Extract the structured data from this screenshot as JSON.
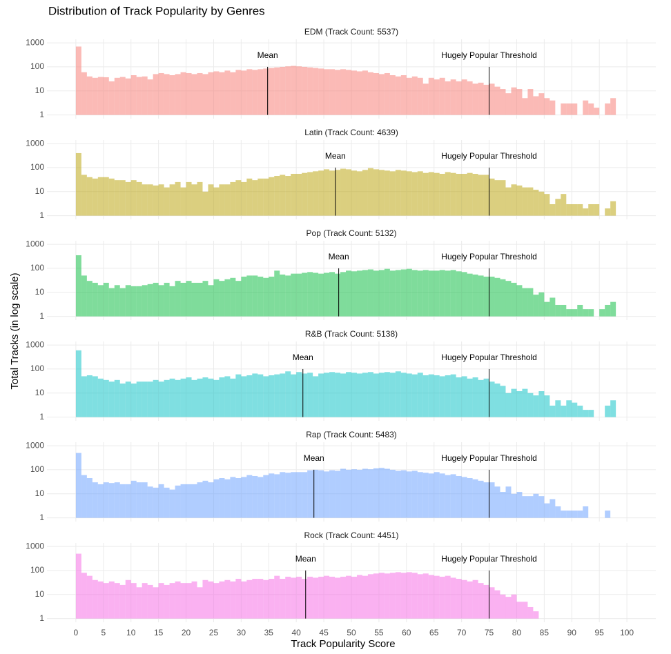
{
  "figure": {
    "title": "Distribution of Track Popularity by Genres",
    "x_label": "Track Popularity Score",
    "y_label": "Total Tracks (in log scale)"
  },
  "chart_data": [
    {
      "type": "histogram",
      "title": "EDM (Track Count: 5537)",
      "color": "#F8766D",
      "log_y": true,
      "grid": true,
      "xlim": [
        -5.25,
        105.25
      ],
      "xticks": [
        0,
        5,
        10,
        15,
        20,
        25,
        30,
        35,
        40,
        45,
        50,
        55,
        60,
        65,
        70,
        75,
        80,
        85,
        90,
        95,
        100
      ],
      "ylim": [
        0.7,
        1400
      ],
      "yticks": [
        1,
        10,
        100,
        1000
      ],
      "bins": [
        0,
        1,
        2,
        3,
        4,
        5,
        6,
        7,
        8,
        9,
        10,
        11,
        12,
        13,
        14,
        15,
        16,
        17,
        18,
        19,
        20,
        21,
        22,
        23,
        24,
        25,
        26,
        27,
        28,
        29,
        30,
        31,
        32,
        33,
        34,
        35,
        36,
        37,
        38,
        39,
        40,
        41,
        42,
        43,
        44,
        45,
        46,
        47,
        48,
        49,
        50,
        51,
        52,
        53,
        54,
        55,
        56,
        57,
        58,
        59,
        60,
        61,
        62,
        63,
        64,
        65,
        66,
        67,
        68,
        69,
        70,
        71,
        72,
        73,
        74,
        75,
        76,
        77,
        78,
        79,
        80,
        81,
        82,
        83,
        84,
        85,
        86,
        87,
        88,
        89,
        90,
        91,
        92,
        93,
        94,
        95,
        96,
        97,
        98
      ],
      "values": [
        700,
        60,
        40,
        35,
        38,
        37,
        25,
        35,
        38,
        33,
        45,
        38,
        40,
        30,
        50,
        55,
        50,
        45,
        50,
        60,
        55,
        50,
        55,
        50,
        60,
        65,
        60,
        70,
        60,
        75,
        70,
        80,
        75,
        80,
        85,
        90,
        95,
        100,
        105,
        110,
        105,
        100,
        95,
        90,
        85,
        80,
        80,
        75,
        80,
        75,
        70,
        65,
        70,
        60,
        55,
        50,
        55,
        45,
        40,
        45,
        35,
        40,
        35,
        20,
        35,
        30,
        35,
        25,
        30,
        25,
        30,
        25,
        20,
        22,
        18,
        20,
        15,
        12,
        8,
        14,
        12,
        5,
        12,
        6,
        8,
        5,
        4,
        null,
        3,
        3,
        3,
        null,
        4,
        3,
        2,
        null,
        3,
        5
      ],
      "annotations": [
        {
          "x": 34.8,
          "label": "Mean"
        },
        {
          "x": 75,
          "label": "Hugely Popular Threshold"
        }
      ]
    },
    {
      "type": "histogram",
      "title": "Latin (Track Count: 4639)",
      "color": "#B79F00",
      "log_y": true,
      "grid": true,
      "xlim": [
        -5.25,
        105.25
      ],
      "xticks": [
        0,
        5,
        10,
        15,
        20,
        25,
        30,
        35,
        40,
        45,
        50,
        55,
        60,
        65,
        70,
        75,
        80,
        85,
        90,
        95,
        100
      ],
      "ylim": [
        0.7,
        1400
      ],
      "yticks": [
        1,
        10,
        100,
        1000
      ],
      "bins": [
        0,
        1,
        2,
        3,
        4,
        5,
        6,
        7,
        8,
        9,
        10,
        11,
        12,
        13,
        14,
        15,
        16,
        17,
        18,
        19,
        20,
        21,
        22,
        23,
        24,
        25,
        26,
        27,
        28,
        29,
        30,
        31,
        32,
        33,
        34,
        35,
        36,
        37,
        38,
        39,
        40,
        41,
        42,
        43,
        44,
        45,
        46,
        47,
        48,
        49,
        50,
        51,
        52,
        53,
        54,
        55,
        56,
        57,
        58,
        59,
        60,
        61,
        62,
        63,
        64,
        65,
        66,
        67,
        68,
        69,
        70,
        71,
        72,
        73,
        74,
        75,
        76,
        77,
        78,
        79,
        80,
        81,
        82,
        83,
        84,
        85,
        86,
        87,
        88,
        89,
        90,
        91,
        92,
        93,
        94,
        95,
        96,
        97,
        98
      ],
      "values": [
        400,
        50,
        40,
        35,
        40,
        40,
        35,
        30,
        30,
        25,
        30,
        25,
        20,
        20,
        18,
        20,
        15,
        20,
        25,
        15,
        25,
        20,
        25,
        10,
        20,
        15,
        20,
        20,
        25,
        30,
        25,
        35,
        30,
        35,
        35,
        40,
        45,
        50,
        45,
        55,
        55,
        60,
        65,
        70,
        75,
        85,
        75,
        80,
        90,
        85,
        75,
        70,
        80,
        95,
        85,
        80,
        75,
        70,
        80,
        75,
        70,
        65,
        70,
        60,
        65,
        60,
        55,
        65,
        60,
        55,
        55,
        60,
        55,
        50,
        50,
        35,
        30,
        30,
        15,
        20,
        18,
        15,
        15,
        12,
        10,
        8,
        3,
        5,
        8,
        3,
        3,
        3,
        2,
        3,
        3,
        null,
        2,
        4
      ],
      "annotations": [
        {
          "x": 47.1,
          "label": "Mean"
        },
        {
          "x": 75,
          "label": "Hugely Popular Threshold"
        }
      ]
    },
    {
      "type": "histogram",
      "title": "Pop (Track Count: 5132)",
      "color": "#00BA38",
      "log_y": true,
      "grid": true,
      "xlim": [
        -5.25,
        105.25
      ],
      "xticks": [
        0,
        5,
        10,
        15,
        20,
        25,
        30,
        35,
        40,
        45,
        50,
        55,
        60,
        65,
        70,
        75,
        80,
        85,
        90,
        95,
        100
      ],
      "ylim": [
        0.7,
        1400
      ],
      "yticks": [
        1,
        10,
        100,
        1000
      ],
      "bins": [
        0,
        1,
        2,
        3,
        4,
        5,
        6,
        7,
        8,
        9,
        10,
        11,
        12,
        13,
        14,
        15,
        16,
        17,
        18,
        19,
        20,
        21,
        22,
        23,
        24,
        25,
        26,
        27,
        28,
        29,
        30,
        31,
        32,
        33,
        34,
        35,
        36,
        37,
        38,
        39,
        40,
        41,
        42,
        43,
        44,
        45,
        46,
        47,
        48,
        49,
        50,
        51,
        52,
        53,
        54,
        55,
        56,
        57,
        58,
        59,
        60,
        61,
        62,
        63,
        64,
        65,
        66,
        67,
        68,
        69,
        70,
        71,
        72,
        73,
        74,
        75,
        76,
        77,
        78,
        79,
        80,
        81,
        82,
        83,
        84,
        85,
        86,
        87,
        88,
        89,
        90,
        91,
        92,
        93,
        94,
        95,
        96,
        97,
        98
      ],
      "values": [
        350,
        50,
        30,
        25,
        20,
        25,
        15,
        20,
        15,
        20,
        18,
        18,
        20,
        22,
        25,
        20,
        25,
        18,
        30,
        25,
        30,
        25,
        25,
        30,
        20,
        35,
        30,
        35,
        40,
        30,
        45,
        50,
        50,
        45,
        40,
        45,
        80,
        55,
        50,
        60,
        60,
        65,
        70,
        65,
        60,
        65,
        70,
        60,
        70,
        80,
        75,
        80,
        85,
        90,
        80,
        85,
        95,
        80,
        85,
        90,
        95,
        85,
        80,
        85,
        80,
        80,
        85,
        80,
        85,
        75,
        70,
        60,
        55,
        50,
        45,
        45,
        40,
        35,
        30,
        25,
        20,
        15,
        15,
        8,
        10,
        4,
        6,
        3,
        3,
        2,
        2,
        3,
        2,
        2,
        null,
        2,
        3,
        4
      ],
      "annotations": [
        {
          "x": 47.7,
          "label": "Mean"
        },
        {
          "x": 75,
          "label": "Hugely Popular Threshold"
        }
      ]
    },
    {
      "type": "histogram",
      "title": "R&B (Track Count: 5138)",
      "color": "#00BFC4",
      "log_y": true,
      "grid": true,
      "xlim": [
        -5.25,
        105.25
      ],
      "xticks": [
        0,
        5,
        10,
        15,
        20,
        25,
        30,
        35,
        40,
        45,
        50,
        55,
        60,
        65,
        70,
        75,
        80,
        85,
        90,
        95,
        100
      ],
      "ylim": [
        0.7,
        1400
      ],
      "yticks": [
        1,
        10,
        100,
        1000
      ],
      "bins": [
        0,
        1,
        2,
        3,
        4,
        5,
        6,
        7,
        8,
        9,
        10,
        11,
        12,
        13,
        14,
        15,
        16,
        17,
        18,
        19,
        20,
        21,
        22,
        23,
        24,
        25,
        26,
        27,
        28,
        29,
        30,
        31,
        32,
        33,
        34,
        35,
        36,
        37,
        38,
        39,
        40,
        41,
        42,
        43,
        44,
        45,
        46,
        47,
        48,
        49,
        50,
        51,
        52,
        53,
        54,
        55,
        56,
        57,
        58,
        59,
        60,
        61,
        62,
        63,
        64,
        65,
        66,
        67,
        68,
        69,
        70,
        71,
        72,
        73,
        74,
        75,
        76,
        77,
        78,
        79,
        80,
        81,
        82,
        83,
        84,
        85,
        86,
        87,
        88,
        89,
        90,
        91,
        92,
        93,
        94,
        95,
        96,
        97,
        98
      ],
      "values": [
        600,
        50,
        55,
        50,
        40,
        35,
        30,
        35,
        25,
        30,
        25,
        30,
        30,
        30,
        35,
        30,
        35,
        40,
        35,
        40,
        45,
        35,
        40,
        45,
        40,
        35,
        45,
        50,
        40,
        60,
        50,
        55,
        65,
        60,
        50,
        55,
        60,
        65,
        80,
        60,
        75,
        65,
        70,
        50,
        65,
        70,
        75,
        70,
        65,
        75,
        70,
        65,
        70,
        75,
        65,
        70,
        75,
        70,
        80,
        70,
        65,
        60,
        70,
        55,
        60,
        55,
        50,
        55,
        60,
        45,
        50,
        40,
        45,
        35,
        40,
        30,
        25,
        20,
        10,
        15,
        12,
        15,
        10,
        8,
        12,
        8,
        3,
        5,
        3,
        5,
        4,
        3,
        2,
        2,
        null,
        null,
        3,
        5
      ],
      "annotations": [
        {
          "x": 41.2,
          "label": "Mean"
        },
        {
          "x": 75,
          "label": "Hugely Popular Threshold"
        }
      ]
    },
    {
      "type": "histogram",
      "title": "Rap (Track Count: 5483)",
      "color": "#619CFF",
      "log_y": true,
      "grid": true,
      "xlim": [
        -5.25,
        105.25
      ],
      "xticks": [
        0,
        5,
        10,
        15,
        20,
        25,
        30,
        35,
        40,
        45,
        50,
        55,
        60,
        65,
        70,
        75,
        80,
        85,
        90,
        95,
        100
      ],
      "ylim": [
        0.7,
        1400
      ],
      "yticks": [
        1,
        10,
        100,
        1000
      ],
      "bins": [
        0,
        1,
        2,
        3,
        4,
        5,
        6,
        7,
        8,
        9,
        10,
        11,
        12,
        13,
        14,
        15,
        16,
        17,
        18,
        19,
        20,
        21,
        22,
        23,
        24,
        25,
        26,
        27,
        28,
        29,
        30,
        31,
        32,
        33,
        34,
        35,
        36,
        37,
        38,
        39,
        40,
        41,
        42,
        43,
        44,
        45,
        46,
        47,
        48,
        49,
        50,
        51,
        52,
        53,
        54,
        55,
        56,
        57,
        58,
        59,
        60,
        61,
        62,
        63,
        64,
        65,
        66,
        67,
        68,
        69,
        70,
        71,
        72,
        73,
        74,
        75,
        76,
        77,
        78,
        79,
        80,
        81,
        82,
        83,
        84,
        85,
        86,
        87,
        88,
        89,
        90,
        91,
        92,
        93,
        94,
        95,
        96,
        97,
        98
      ],
      "values": [
        500,
        60,
        45,
        30,
        25,
        30,
        28,
        30,
        25,
        25,
        35,
        30,
        30,
        20,
        18,
        25,
        18,
        15,
        22,
        25,
        25,
        25,
        30,
        35,
        30,
        40,
        45,
        40,
        50,
        45,
        50,
        60,
        55,
        50,
        60,
        70,
        65,
        80,
        75,
        80,
        80,
        80,
        95,
        100,
        95,
        85,
        95,
        90,
        110,
        100,
        105,
        100,
        110,
        105,
        115,
        120,
        110,
        100,
        90,
        95,
        85,
        90,
        80,
        75,
        70,
        80,
        70,
        60,
        65,
        55,
        50,
        45,
        40,
        35,
        30,
        30,
        20,
        12,
        20,
        10,
        12,
        8,
        8,
        10,
        8,
        4,
        6,
        3,
        2,
        2,
        2,
        2,
        3,
        null,
        null,
        null,
        2,
        null
      ],
      "annotations": [
        {
          "x": 43.2,
          "label": "Mean"
        },
        {
          "x": 75,
          "label": "Hugely Popular Threshold"
        }
      ]
    },
    {
      "type": "histogram",
      "title": "Rock (Track Count: 4451)",
      "color": "#F564E3",
      "log_y": true,
      "grid": true,
      "xlim": [
        -5.25,
        105.25
      ],
      "xticks": [
        0,
        5,
        10,
        15,
        20,
        25,
        30,
        35,
        40,
        45,
        50,
        55,
        60,
        65,
        70,
        75,
        80,
        85,
        90,
        95,
        100
      ],
      "ylim": [
        0.7,
        1400
      ],
      "yticks": [
        1,
        10,
        100,
        1000
      ],
      "bins": [
        0,
        1,
        2,
        3,
        4,
        5,
        6,
        7,
        8,
        9,
        10,
        11,
        12,
        13,
        14,
        15,
        16,
        17,
        18,
        19,
        20,
        21,
        22,
        23,
        24,
        25,
        26,
        27,
        28,
        29,
        30,
        31,
        32,
        33,
        34,
        35,
        36,
        37,
        38,
        39,
        40,
        41,
        42,
        43,
        44,
        45,
        46,
        47,
        48,
        49,
        50,
        51,
        52,
        53,
        54,
        55,
        56,
        57,
        58,
        59,
        60,
        61,
        62,
        63,
        64,
        65,
        66,
        67,
        68,
        69,
        70,
        71,
        72,
        73,
        74,
        75,
        76,
        77,
        78,
        79,
        80,
        81,
        82,
        83,
        84,
        85,
        86,
        87,
        88,
        89,
        90,
        91,
        92,
        93,
        94,
        95,
        96,
        97,
        98
      ],
      "values": [
        500,
        80,
        60,
        40,
        35,
        30,
        35,
        30,
        25,
        40,
        30,
        20,
        30,
        25,
        20,
        30,
        25,
        30,
        35,
        30,
        30,
        35,
        20,
        40,
        35,
        30,
        35,
        40,
        35,
        45,
        35,
        40,
        45,
        45,
        40,
        45,
        60,
        45,
        55,
        50,
        55,
        45,
        55,
        50,
        55,
        60,
        55,
        50,
        55,
        60,
        55,
        65,
        60,
        70,
        75,
        80,
        75,
        80,
        85,
        80,
        85,
        80,
        70,
        75,
        65,
        60,
        55,
        60,
        50,
        45,
        40,
        35,
        40,
        30,
        25,
        20,
        15,
        10,
        8,
        10,
        5,
        5,
        3,
        2,
        null,
        null,
        null,
        null,
        null,
        null,
        null,
        null,
        null,
        null,
        null,
        null,
        null,
        null
      ],
      "annotations": [
        {
          "x": 41.7,
          "label": "Mean"
        },
        {
          "x": 75,
          "label": "Hugely Popular Threshold"
        }
      ]
    }
  ]
}
